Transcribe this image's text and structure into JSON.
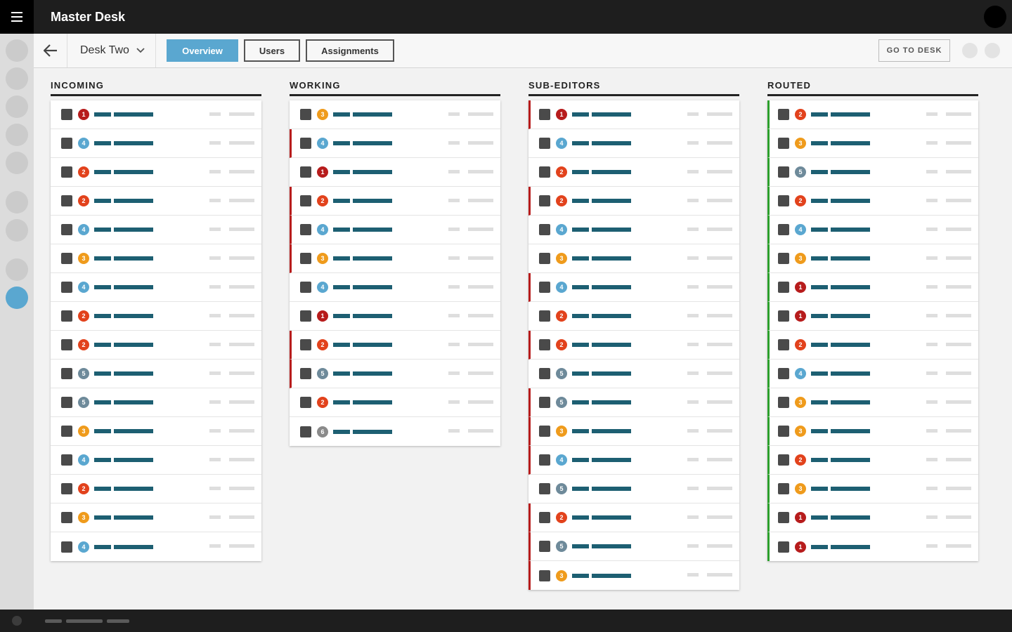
{
  "app": {
    "title": "Master Desk"
  },
  "subnav": {
    "desk_name": "Desk Two",
    "tabs": [
      {
        "label": "Overview",
        "active": true
      },
      {
        "label": "Users",
        "active": false
      },
      {
        "label": "Assignments",
        "active": false
      }
    ],
    "goto_label": "GO TO DESK"
  },
  "colors": {
    "accent": "#5aa7d0",
    "priority": {
      "1": "#b71c1c",
      "2": "#e2421c",
      "3": "#ef9b1c",
      "4": "#5aa7d0",
      "5": "#6e8a9a",
      "6": "#8a8a8a"
    },
    "flag_red": "#b71c1c",
    "flag_green": "#2ca02c"
  },
  "columns": [
    {
      "title": "INCOMING",
      "items": [
        {
          "priority": 1,
          "flag": "none"
        },
        {
          "priority": 4,
          "flag": "none"
        },
        {
          "priority": 2,
          "flag": "none"
        },
        {
          "priority": 2,
          "flag": "none"
        },
        {
          "priority": 4,
          "flag": "none"
        },
        {
          "priority": 3,
          "flag": "none"
        },
        {
          "priority": 4,
          "flag": "none"
        },
        {
          "priority": 2,
          "flag": "none"
        },
        {
          "priority": 2,
          "flag": "none"
        },
        {
          "priority": 5,
          "flag": "none"
        },
        {
          "priority": 5,
          "flag": "none"
        },
        {
          "priority": 3,
          "flag": "none"
        },
        {
          "priority": 4,
          "flag": "none"
        },
        {
          "priority": 2,
          "flag": "none"
        },
        {
          "priority": 3,
          "flag": "none"
        },
        {
          "priority": 4,
          "flag": "none"
        }
      ]
    },
    {
      "title": "WORKING",
      "items": [
        {
          "priority": 3,
          "flag": "none"
        },
        {
          "priority": 4,
          "flag": "red"
        },
        {
          "priority": 1,
          "flag": "none"
        },
        {
          "priority": 2,
          "flag": "red"
        },
        {
          "priority": 4,
          "flag": "red"
        },
        {
          "priority": 3,
          "flag": "red"
        },
        {
          "priority": 4,
          "flag": "none"
        },
        {
          "priority": 1,
          "flag": "none"
        },
        {
          "priority": 2,
          "flag": "red"
        },
        {
          "priority": 5,
          "flag": "red"
        },
        {
          "priority": 2,
          "flag": "none"
        },
        {
          "priority": 6,
          "flag": "none"
        }
      ]
    },
    {
      "title": "SUB-EDITORS",
      "items": [
        {
          "priority": 1,
          "flag": "red"
        },
        {
          "priority": 4,
          "flag": "none"
        },
        {
          "priority": 2,
          "flag": "none"
        },
        {
          "priority": 2,
          "flag": "red"
        },
        {
          "priority": 4,
          "flag": "none"
        },
        {
          "priority": 3,
          "flag": "none"
        },
        {
          "priority": 4,
          "flag": "red"
        },
        {
          "priority": 2,
          "flag": "none"
        },
        {
          "priority": 2,
          "flag": "red"
        },
        {
          "priority": 5,
          "flag": "none"
        },
        {
          "priority": 5,
          "flag": "red"
        },
        {
          "priority": 3,
          "flag": "red"
        },
        {
          "priority": 4,
          "flag": "red"
        },
        {
          "priority": 5,
          "flag": "none"
        },
        {
          "priority": 2,
          "flag": "red"
        },
        {
          "priority": 5,
          "flag": "red"
        },
        {
          "priority": 3,
          "flag": "red"
        }
      ]
    },
    {
      "title": "ROUTED",
      "items": [
        {
          "priority": 2,
          "flag": "green"
        },
        {
          "priority": 3,
          "flag": "green"
        },
        {
          "priority": 5,
          "flag": "green"
        },
        {
          "priority": 2,
          "flag": "green"
        },
        {
          "priority": 4,
          "flag": "green"
        },
        {
          "priority": 3,
          "flag": "green"
        },
        {
          "priority": 1,
          "flag": "green"
        },
        {
          "priority": 1,
          "flag": "green"
        },
        {
          "priority": 2,
          "flag": "green"
        },
        {
          "priority": 4,
          "flag": "green"
        },
        {
          "priority": 3,
          "flag": "green"
        },
        {
          "priority": 3,
          "flag": "green"
        },
        {
          "priority": 2,
          "flag": "green"
        },
        {
          "priority": 3,
          "flag": "green"
        },
        {
          "priority": 1,
          "flag": "green"
        },
        {
          "priority": 1,
          "flag": "green"
        }
      ]
    }
  ]
}
